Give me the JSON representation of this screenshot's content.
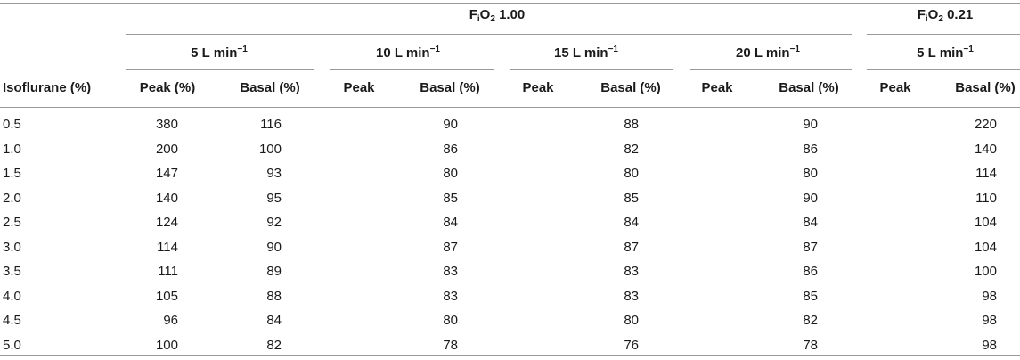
{
  "groups": {
    "fio2_100": {
      "f": "F",
      "sub": "i",
      "o": "O",
      "two": "2",
      "value": "1.00"
    },
    "fio2_021": {
      "f": "F",
      "sub": "i",
      "o": "O",
      "two": "2",
      "value": "0.21"
    }
  },
  "flows": [
    {
      "text": "5 L min",
      "sup": "−1"
    },
    {
      "text": "10 L min",
      "sup": "−1"
    },
    {
      "text": "15 L min",
      "sup": "−1"
    },
    {
      "text": "20 L min",
      "sup": "−1"
    },
    {
      "text": "5 L min",
      "sup": "−1"
    }
  ],
  "columns": {
    "row_header": "Isoflurane (%)",
    "peak_pct": "Peak (%)",
    "basal_pct": "Basal (%)",
    "peak": "Peak"
  },
  "rows": [
    {
      "iso": "0.5",
      "peak": "380",
      "basal": "116",
      "b10": "90",
      "b15": "88",
      "b20": "90",
      "b021": "220"
    },
    {
      "iso": "1.0",
      "peak": "200",
      "basal": "100",
      "b10": "86",
      "b15": "82",
      "b20": "86",
      "b021": "140"
    },
    {
      "iso": "1.5",
      "peak": "147",
      "basal": "93",
      "b10": "80",
      "b15": "80",
      "b20": "80",
      "b021": "114"
    },
    {
      "iso": "2.0",
      "peak": "140",
      "basal": "95",
      "b10": "85",
      "b15": "85",
      "b20": "90",
      "b021": "110"
    },
    {
      "iso": "2.5",
      "peak": "124",
      "basal": "92",
      "b10": "84",
      "b15": "84",
      "b20": "84",
      "b021": "104"
    },
    {
      "iso": "3.0",
      "peak": "114",
      "basal": "90",
      "b10": "87",
      "b15": "87",
      "b20": "87",
      "b021": "104"
    },
    {
      "iso": "3.5",
      "peak": "111",
      "basal": "89",
      "b10": "83",
      "b15": "83",
      "b20": "86",
      "b021": "100"
    },
    {
      "iso": "4.0",
      "peak": "105",
      "basal": "88",
      "b10": "83",
      "b15": "83",
      "b20": "85",
      "b021": "98"
    },
    {
      "iso": "4.5",
      "peak": "96",
      "basal": "84",
      "b10": "80",
      "b15": "80",
      "b20": "82",
      "b021": "98"
    },
    {
      "iso": "5.0",
      "peak": "100",
      "basal": "82",
      "b10": "78",
      "b15": "76",
      "b20": "78",
      "b021": "98"
    }
  ]
}
